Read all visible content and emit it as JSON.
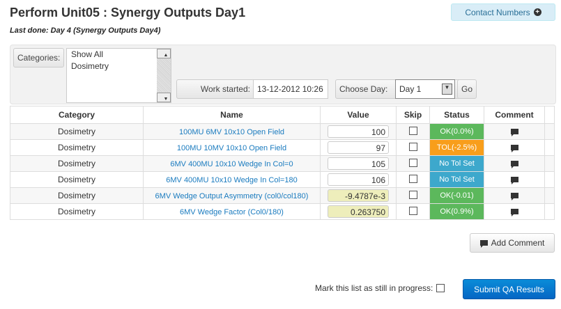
{
  "header": {
    "title": "Perform Unit05 : Synergy Outputs Day1",
    "last_done": "Last done: Day 4 (Synergy Outputs Day4)",
    "contact_label": "Contact Numbers"
  },
  "filters": {
    "categories_label": "Categories:",
    "categories": [
      "Show All",
      "Dosimetry"
    ],
    "work_started_label": "Work started:",
    "work_started": "13-12-2012 10:26",
    "choose_day_label": "Choose Day:",
    "day": "Day 1",
    "go": "Go"
  },
  "table": {
    "headers": [
      "Category",
      "Name",
      "Value",
      "Skip",
      "Status",
      "Comment"
    ],
    "rows": [
      {
        "category": "Dosimetry",
        "name": "100MU 6MV 10x10 Open Field",
        "value": "100",
        "calc": false,
        "status": "OK(0.0%)",
        "status_color": "#5cb85c"
      },
      {
        "category": "Dosimetry",
        "name": "100MU 10MV 10x10 Open Field",
        "value": "97",
        "calc": false,
        "status": "TOL(-2.5%)",
        "status_color": "#f89e1b"
      },
      {
        "category": "Dosimetry",
        "name": "6MV 400MU 10x10 Wedge In Col=0",
        "value": "105",
        "calc": false,
        "status": "No Tol Set",
        "status_color": "#3da8cc"
      },
      {
        "category": "Dosimetry",
        "name": "6MV 400MU 10x10 Wedge In Col=180",
        "value": "106",
        "calc": false,
        "status": "No Tol Set",
        "status_color": "#3da8cc"
      },
      {
        "category": "Dosimetry",
        "name": "6MV Wedge Output Asymmetry (col0/col180)",
        "value": "-9.4787e-3",
        "calc": true,
        "status": "OK(-0.01)",
        "status_color": "#5cb85c"
      },
      {
        "category": "Dosimetry",
        "name": "6MV Wedge Factor (Col0/180)",
        "value": "0.263750",
        "calc": true,
        "status": "OK(0.9%)",
        "status_color": "#5cb85c"
      }
    ]
  },
  "footer": {
    "add_comment": "Add Comment",
    "in_progress_label": "Mark this list as still in progress:",
    "submit": "Submit QA Results"
  }
}
